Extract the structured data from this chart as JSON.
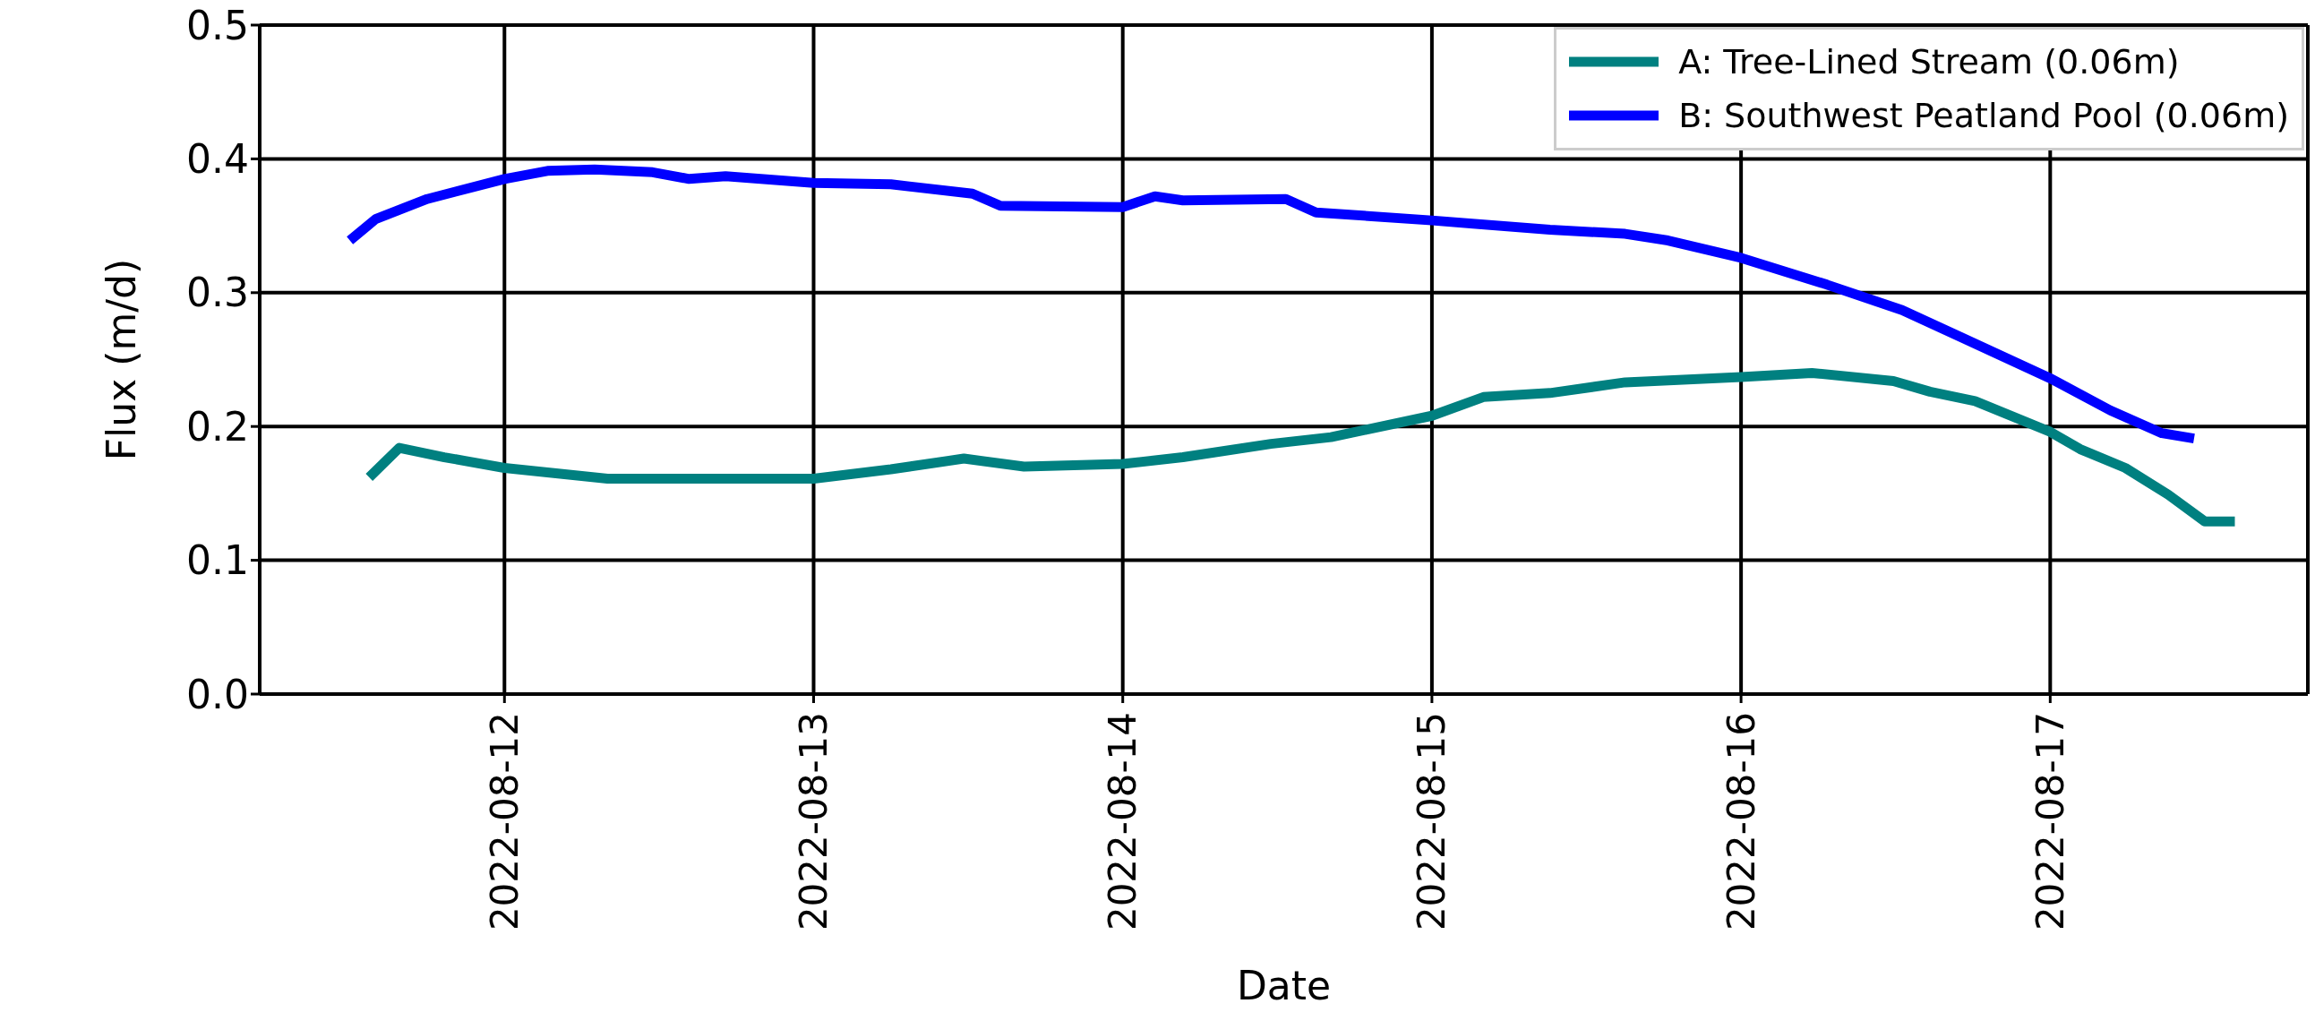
{
  "chart_data": {
    "type": "line",
    "xlabel": "Date",
    "ylabel": "Flux (m/d)",
    "xlim": [
      "2022-08-11T05:00",
      "2022-08-17T20:00"
    ],
    "xticks": [
      "2022-08-12",
      "2022-08-13",
      "2022-08-14",
      "2022-08-15",
      "2022-08-16",
      "2022-08-17"
    ],
    "ylim": [
      0,
      0.5
    ],
    "yticks": [
      {
        "value": 0,
        "label": "0.0"
      },
      {
        "value": 0.1,
        "label": "0.1"
      },
      {
        "value": 0.2,
        "label": "0.2"
      },
      {
        "value": 0.3,
        "label": "0.3"
      },
      {
        "value": 0.4,
        "label": "0.4"
      },
      {
        "value": 0.5,
        "label": "0.5"
      }
    ],
    "grid": true,
    "legend": "top right",
    "line_style": "solid",
    "marker": "none",
    "series": [
      {
        "name": "A: Tree-Lined Stream (0.06m)",
        "color": "#008080",
        "x": [
          "2022-08-11T13:30",
          "2022-08-11T15:50",
          "2022-08-11T19:20",
          "2022-08-12T00:00",
          "2022-08-12T08:00",
          "2022-08-12T15:00",
          "2022-08-13T00:00",
          "2022-08-13T06:00",
          "2022-08-13T11:40",
          "2022-08-13T16:20",
          "2022-08-14T00:00",
          "2022-08-14T04:40",
          "2022-08-14T11:30",
          "2022-08-14T16:10",
          "2022-08-15T00:00",
          "2022-08-15T04:00",
          "2022-08-15T09:10",
          "2022-08-15T15:00",
          "2022-08-16T00:00",
          "2022-08-16T05:30",
          "2022-08-16T11:50",
          "2022-08-16T14:40",
          "2022-08-16T18:10",
          "2022-08-17T00:00",
          "2022-08-17T02:20",
          "2022-08-17T05:50",
          "2022-08-17T09:10",
          "2022-08-17T12:00",
          "2022-08-17T14:20"
        ],
        "values": [
          0.162,
          0.184,
          0.177,
          0.169,
          0.161,
          0.161,
          0.161,
          0.168,
          0.176,
          0.17,
          0.172,
          0.177,
          0.187,
          0.192,
          0.208,
          0.222,
          0.225,
          0.233,
          0.237,
          0.24,
          0.234,
          0.226,
          0.219,
          0.196,
          0.183,
          0.169,
          0.149,
          0.129,
          0.129
        ]
      },
      {
        "name": "B: Southwest Peatland Pool (0.06m)",
        "color": "#0000ff",
        "x": [
          "2022-08-11T12:00",
          "2022-08-11T14:00",
          "2022-08-11T18:00",
          "2022-08-12T00:00",
          "2022-08-12T03:20",
          "2022-08-12T07:00",
          "2022-08-12T11:30",
          "2022-08-12T14:20",
          "2022-08-12T17:10",
          "2022-08-13T00:00",
          "2022-08-13T06:00",
          "2022-08-13T12:20",
          "2022-08-13T14:30",
          "2022-08-14T00:00",
          "2022-08-14T02:30",
          "2022-08-14T04:40",
          "2022-08-14T12:40",
          "2022-08-14T15:00",
          "2022-08-15T00:00",
          "2022-08-15T09:10",
          "2022-08-15T15:00",
          "2022-08-15T18:20",
          "2022-08-16T00:00",
          "2022-08-16T06:40",
          "2022-08-16T12:30",
          "2022-08-16T17:00",
          "2022-08-17T00:00",
          "2022-08-17T04:40",
          "2022-08-17T08:40",
          "2022-08-17T11:10"
        ],
        "values": [
          0.339,
          0.355,
          0.37,
          0.385,
          0.391,
          0.392,
          0.39,
          0.385,
          0.387,
          0.382,
          0.381,
          0.374,
          0.365,
          0.364,
          0.372,
          0.369,
          0.37,
          0.36,
          0.354,
          0.347,
          0.344,
          0.339,
          0.326,
          0.306,
          0.287,
          0.267,
          0.236,
          0.212,
          0.195,
          0.191
        ]
      }
    ]
  }
}
